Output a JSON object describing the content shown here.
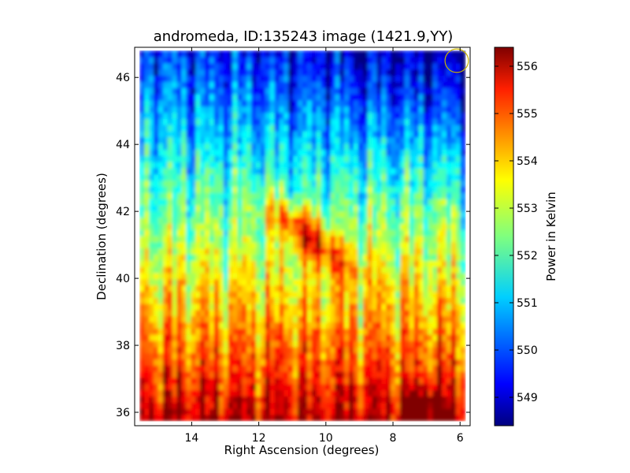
{
  "chart_data": {
    "type": "heatmap",
    "title": "andromeda, ID:135243 image (1421.9,YY)",
    "xlabel": "Right Ascension (degrees)",
    "ylabel": "Declination (degrees)",
    "colorbar_label": "Power in Kelvin",
    "xlim": [
      15.7,
      5.7
    ],
    "ylim": [
      35.6,
      46.9
    ],
    "x_ticks": [
      14,
      12,
      10,
      8,
      6
    ],
    "x_tick_labels": [
      "14",
      "12",
      "10",
      "8",
      "6"
    ],
    "y_ticks": [
      36,
      38,
      40,
      42,
      44,
      46
    ],
    "y_tick_labels": [
      "36",
      "38",
      "40",
      "42",
      "44",
      "46"
    ],
    "colorbar_range": [
      548.4,
      556.4
    ],
    "colorbar_ticks": [
      549,
      550,
      551,
      552,
      553,
      554,
      555,
      556
    ],
    "colorbar_tick_labels": [
      "549",
      "550",
      "551",
      "552",
      "553",
      "554",
      "555",
      "556"
    ],
    "colormap": "jet",
    "beam_marker": {
      "ra": 6.1,
      "dec": 46.5,
      "radius_deg": 0.35,
      "color": "#c8b400"
    },
    "features": [
      {
        "name": "bright ridge",
        "ra_range": [
          11.5,
          9.5
        ],
        "dec_range": [
          40.5,
          42.0
        ],
        "peak_kelvin": 555.0
      },
      {
        "name": "warm base band",
        "dec_range": [
          35.8,
          37.0
        ],
        "typical_kelvin": 554.5
      },
      {
        "name": "hot spot",
        "ra": 7.0,
        "dec": 36.2,
        "peak_kelvin": 556.3
      },
      {
        "name": "cold region",
        "ra_range": [
          9.0,
          5.8
        ],
        "dec_range": [
          44.0,
          46.8
        ],
        "typical_kelvin": 549.3
      }
    ],
    "grid": false,
    "legend": "none"
  }
}
